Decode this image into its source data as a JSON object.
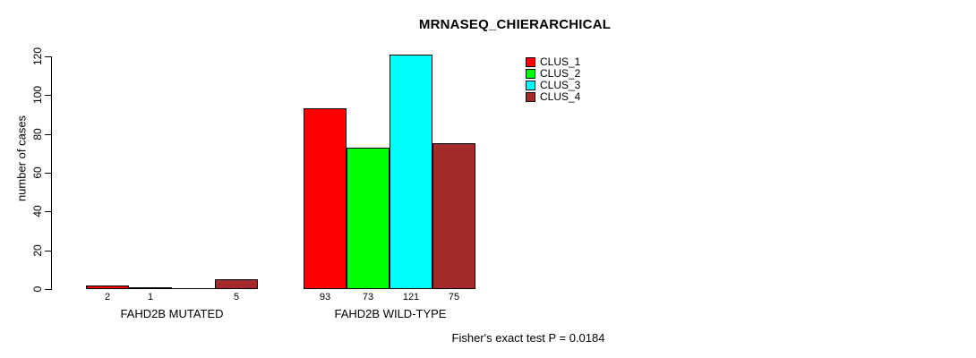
{
  "chart_data": {
    "type": "bar",
    "title": "MRNASEQ_CHIERARCHICAL",
    "ylabel": "number of cases",
    "xlabel": "",
    "ylim": [
      0,
      120
    ],
    "yticks": [
      0,
      20,
      40,
      60,
      80,
      100,
      120
    ],
    "grid": false,
    "legend_position": "top-right",
    "categories": [
      "FAHD2B MUTATED",
      "FAHD2B WILD-TYPE"
    ],
    "series": [
      {
        "name": "CLUS_1",
        "color": "#ff0000",
        "values": [
          2,
          93
        ]
      },
      {
        "name": "CLUS_2",
        "color": "#00ff00",
        "values": [
          1,
          73
        ]
      },
      {
        "name": "CLUS_3",
        "color": "#00ffff",
        "values": [
          0,
          121
        ]
      },
      {
        "name": "CLUS_4",
        "color": "#a52a2a",
        "values": [
          5,
          75
        ]
      }
    ],
    "bar_value_labels": [
      [
        "2",
        "1",
        "",
        "5"
      ],
      [
        "93",
        "73",
        "121",
        "75"
      ]
    ],
    "annotation": "Fisher's exact test P = 0.0184"
  }
}
